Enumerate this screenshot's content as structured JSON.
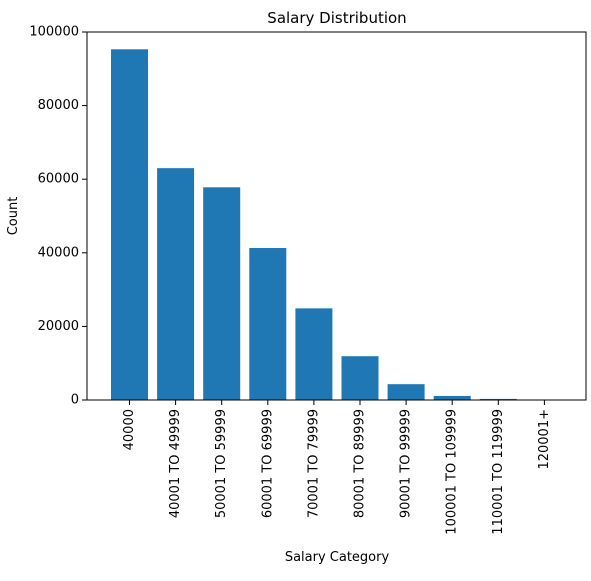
{
  "chart_data": {
    "type": "bar",
    "title": "Salary Distribution",
    "xlabel": "Salary Category",
    "ylabel": "Count",
    "categories": [
      "40000",
      "40001 TO 49999",
      "50001 TO 59999",
      "60001 TO 69999",
      "70001 TO 79999",
      "80001 TO 89999",
      "90001 TO 99999",
      "100001 TO 109999",
      "110001 TO 119999",
      "120001+"
    ],
    "values": [
      95300,
      63000,
      57800,
      41300,
      24900,
      11900,
      4300,
      1100,
      300,
      100
    ],
    "ylim": [
      0,
      100000
    ],
    "yticks": [
      0,
      20000,
      40000,
      60000,
      80000,
      100000
    ],
    "ytick_labels": [
      "0",
      "20000",
      "40000",
      "60000",
      "80000",
      "100000"
    ],
    "bar_color": "#1f77b4",
    "grid": false,
    "legend": "none"
  }
}
